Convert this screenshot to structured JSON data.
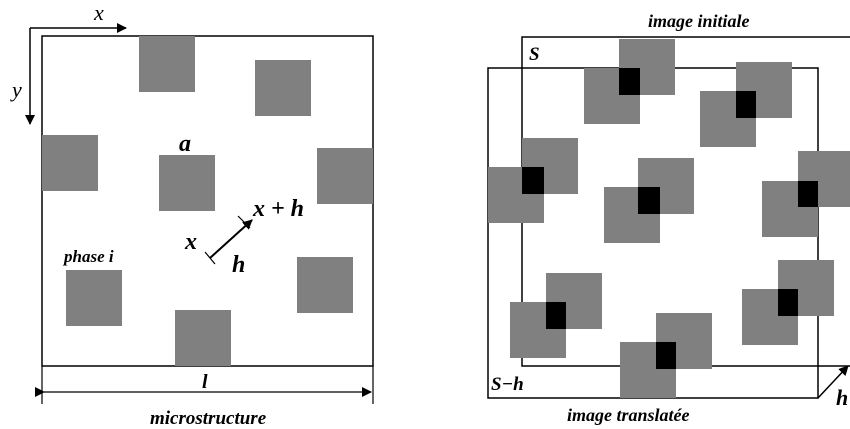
{
  "colors": {
    "phase": "#808080",
    "overlap": "#000000",
    "line": "#000000",
    "background": "#ffffff"
  },
  "left_panel": {
    "axis_x": "x",
    "axis_y": "y",
    "label_a": "a",
    "label_phase": "phase i",
    "label_x": "x",
    "label_x_plus_h": "x + h",
    "label_h": "h",
    "label_l": "l",
    "caption": "microstructure"
  },
  "right_panel": {
    "title": "image initiale",
    "label_S": "S",
    "label_S_minus_h": "S−h",
    "caption": "image translatée",
    "label_h": "h"
  }
}
